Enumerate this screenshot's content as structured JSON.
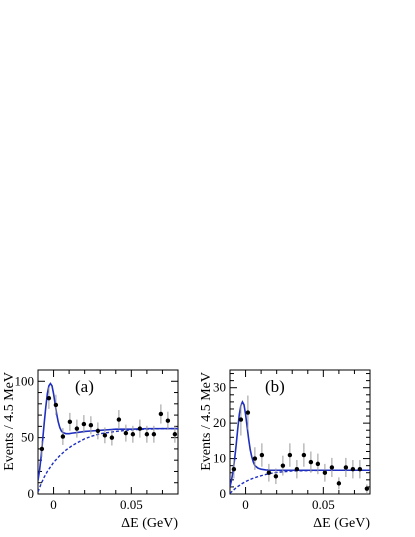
{
  "chart_data": [
    {
      "type": "scatter",
      "panel_label": "(a)",
      "xlabel": "ΔE (GeV)",
      "ylabel": "Events / 4.5 MeV",
      "xlim": [
        -0.01,
        0.08
      ],
      "ylim": [
        0,
        110
      ],
      "xticks": [
        0,
        0.05
      ],
      "xtick_labels": [
        "0",
        "0.05"
      ],
      "yticks": [
        0,
        50,
        100
      ],
      "ytick_labels": [
        "0",
        "50",
        "100"
      ],
      "grid": false,
      "colors": {
        "fit": "#1f2fbf",
        "points": "#000000",
        "errors": "#999999"
      },
      "series": [
        {
          "kind": "data-points",
          "x": [
            -0.0075,
            -0.003,
            0.0015,
            0.006,
            0.0105,
            0.015,
            0.0195,
            0.024,
            0.0285,
            0.033,
            0.0375,
            0.042,
            0.0465,
            0.051,
            0.0555,
            0.06,
            0.0645,
            0.069,
            0.0735,
            0.078
          ],
          "y": [
            40,
            85,
            79,
            51,
            64,
            58,
            62,
            61,
            56,
            52,
            50,
            66,
            54,
            53,
            58,
            53,
            53,
            71,
            65,
            53
          ],
          "yerr": [
            7,
            9.5,
            9,
            7.5,
            8,
            8,
            8,
            8,
            7.5,
            7,
            7,
            8.5,
            7.5,
            7.5,
            8,
            7.5,
            7.5,
            8.5,
            8,
            7.5
          ]
        },
        {
          "kind": "total-fit",
          "x": [
            -0.01,
            -0.009,
            -0.008,
            -0.007,
            -0.006,
            -0.005,
            -0.004,
            -0.003,
            -0.002,
            -0.001,
            0,
            0.001,
            0.002,
            0.003,
            0.004,
            0.005,
            0.006,
            0.007,
            0.008,
            0.01,
            0.012,
            0.015,
            0.02,
            0.025,
            0.03,
            0.035,
            0.04,
            0.05,
            0.06,
            0.07,
            0.08
          ],
          "y": [
            12,
            21,
            33,
            48,
            63,
            77,
            89,
            96,
            98,
            96,
            89,
            80,
            71,
            64,
            59,
            56,
            54.5,
            54,
            53.5,
            53.5,
            54,
            54.5,
            55.5,
            56,
            56.5,
            57,
            57.5,
            57.5,
            58,
            58,
            58
          ]
        },
        {
          "kind": "background-fit",
          "x": [
            -0.01,
            -0.008,
            -0.006,
            -0.004,
            -0.002,
            0,
            0.004,
            0.008,
            0.012,
            0.016,
            0.02,
            0.025,
            0.03,
            0.04,
            0.05,
            0.06,
            0.07,
            0.08
          ],
          "y": [
            2,
            9,
            15,
            20,
            24,
            28,
            34,
            39,
            43,
            46,
            49,
            51.5,
            53.5,
            55.5,
            57,
            57.5,
            58,
            58
          ]
        }
      ]
    },
    {
      "type": "scatter",
      "panel_label": "(b)",
      "xlabel": "ΔE (GeV)",
      "ylabel": "Events / 4.5 MeV",
      "xlim": [
        -0.01,
        0.08
      ],
      "ylim": [
        0,
        35
      ],
      "xticks": [
        0,
        0.05
      ],
      "xtick_labels": [
        "0",
        "0.05"
      ],
      "yticks": [
        0,
        10,
        20,
        30
      ],
      "ytick_labels": [
        "0",
        "10",
        "20",
        "30"
      ],
      "grid": false,
      "colors": {
        "fit": "#1f2fbf",
        "points": "#000000",
        "errors": "#999999"
      },
      "series": [
        {
          "kind": "data-points",
          "x": [
            -0.0075,
            -0.003,
            0.0015,
            0.006,
            0.0105,
            0.015,
            0.0195,
            0.024,
            0.0285,
            0.033,
            0.0375,
            0.042,
            0.0465,
            0.051,
            0.0555,
            0.06,
            0.0645,
            0.069,
            0.0735,
            0.078
          ],
          "y": [
            7,
            21,
            23,
            10,
            11,
            6,
            5,
            8,
            11,
            7,
            11,
            9,
            8.5,
            6,
            7.5,
            3,
            7.5,
            7,
            7,
            1.5
          ],
          "yerr": [
            2.6,
            4.5,
            4.8,
            3.2,
            3.3,
            2.5,
            2.2,
            2.8,
            3.3,
            2.6,
            3.3,
            3,
            2.9,
            2.5,
            2.7,
            1.7,
            2.7,
            2.6,
            2.6,
            1.2
          ]
        },
        {
          "kind": "total-fit",
          "x": [
            -0.01,
            -0.009,
            -0.008,
            -0.007,
            -0.006,
            -0.005,
            -0.004,
            -0.003,
            -0.002,
            -0.001,
            0,
            0.001,
            0.002,
            0.003,
            0.004,
            0.005,
            0.006,
            0.008,
            0.01,
            0.013,
            0.016,
            0.02,
            0.025,
            0.03,
            0.04,
            0.05,
            0.06,
            0.07,
            0.08
          ],
          "y": [
            2,
            4,
            6.5,
            10,
            14,
            18.5,
            22.5,
            25,
            26,
            25.2,
            22.5,
            19,
            15.5,
            12.5,
            10.5,
            9,
            8,
            7.3,
            7,
            6.8,
            6.7,
            6.7,
            6.7,
            6.7,
            6.7,
            6.7,
            6.7,
            6.7,
            6.7
          ]
        },
        {
          "kind": "background-fit",
          "x": [
            -0.01,
            -0.008,
            -0.006,
            -0.004,
            -0.002,
            0,
            0.004,
            0.008,
            0.012,
            0.016,
            0.02,
            0.025,
            0.03,
            0.04,
            0.05,
            0.06,
            0.07,
            0.08
          ],
          "y": [
            0.2,
            1,
            1.8,
            2.4,
            3,
            3.5,
            4.3,
            4.9,
            5.4,
            5.8,
            6.1,
            6.3,
            6.5,
            6.6,
            6.7,
            6.7,
            6.7,
            6.7
          ]
        }
      ]
    }
  ]
}
